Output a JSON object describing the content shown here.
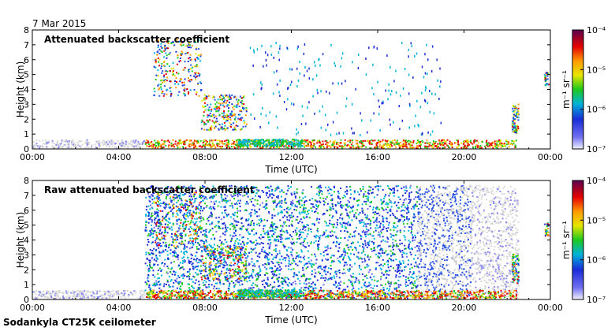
{
  "date_label": "7 Mar 2015",
  "footer": "Sodankyla CT25K ceilometer",
  "chart_data": [
    {
      "type": "heatmap",
      "title": "Attenuated backscatter coefficient",
      "xlabel": "Time (UTC)",
      "ylabel": "Height (km)",
      "xlim": [
        0,
        24
      ],
      "ylim": [
        0,
        8
      ],
      "x_ticks": [
        "00:00",
        "04:00",
        "08:00",
        "12:00",
        "16:00",
        "20:00",
        "00:00"
      ],
      "y_ticks": [
        "0",
        "1",
        "2",
        "3",
        "4",
        "5",
        "6",
        "7",
        "8"
      ],
      "colorbar": {
        "label": "m⁻¹ sr⁻¹",
        "scale": "log",
        "range": [
          1e-07,
          0.0001
        ],
        "ticks": [
          "10⁻⁴",
          "10⁻⁵",
          "10⁻⁶",
          "10⁻⁷"
        ]
      },
      "grid": false
    },
    {
      "type": "heatmap",
      "title": "Raw attenuated backscatter coefficient",
      "xlabel": "Time (UTC)",
      "ylabel": "Height (km)",
      "xlim": [
        0,
        24
      ],
      "ylim": [
        0,
        8
      ],
      "x_ticks": [
        "00:00",
        "04:00",
        "08:00",
        "12:00",
        "16:00",
        "20:00",
        "00:00"
      ],
      "y_ticks": [
        "0",
        "1",
        "2",
        "3",
        "4",
        "5",
        "6",
        "7",
        "8"
      ],
      "colorbar": {
        "label": "m⁻¹ sr⁻¹",
        "scale": "log",
        "range": [
          1e-07,
          0.0001
        ],
        "ticks": [
          "10⁻⁴",
          "10⁻⁵",
          "10⁻⁶",
          "10⁻⁷"
        ]
      },
      "grid": false
    }
  ]
}
